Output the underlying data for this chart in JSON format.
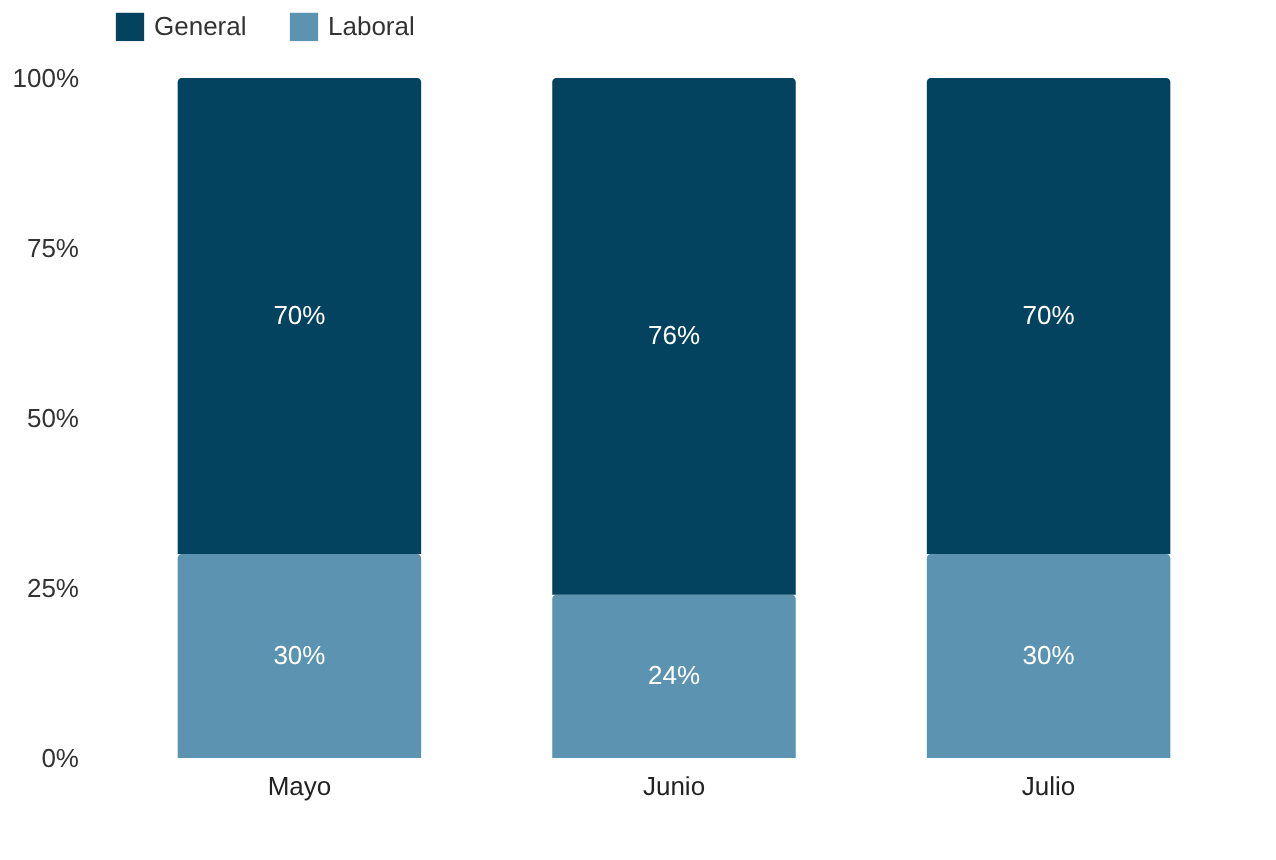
{
  "chart_data": {
    "type": "bar",
    "stacked": true,
    "categories": [
      "Mayo",
      "Junio",
      "Julio"
    ],
    "series": [
      {
        "name": "Laboral",
        "color": "#5b93b0",
        "values": [
          30,
          24,
          30
        ],
        "value_labels": [
          "30%",
          "24%",
          "30%"
        ]
      },
      {
        "name": "General",
        "color": "#03435f",
        "values": [
          70,
          76,
          70
        ],
        "value_labels": [
          "70%",
          "76%",
          "70%"
        ]
      }
    ],
    "ylim": [
      0,
      100
    ],
    "yticks": [
      {
        "value": 0,
        "label": "0%"
      },
      {
        "value": 25,
        "label": "25%"
      },
      {
        "value": 50,
        "label": "50%"
      },
      {
        "value": 75,
        "label": "75%"
      },
      {
        "value": 100,
        "label": "100%"
      }
    ],
    "grid": false,
    "legend": "top"
  }
}
